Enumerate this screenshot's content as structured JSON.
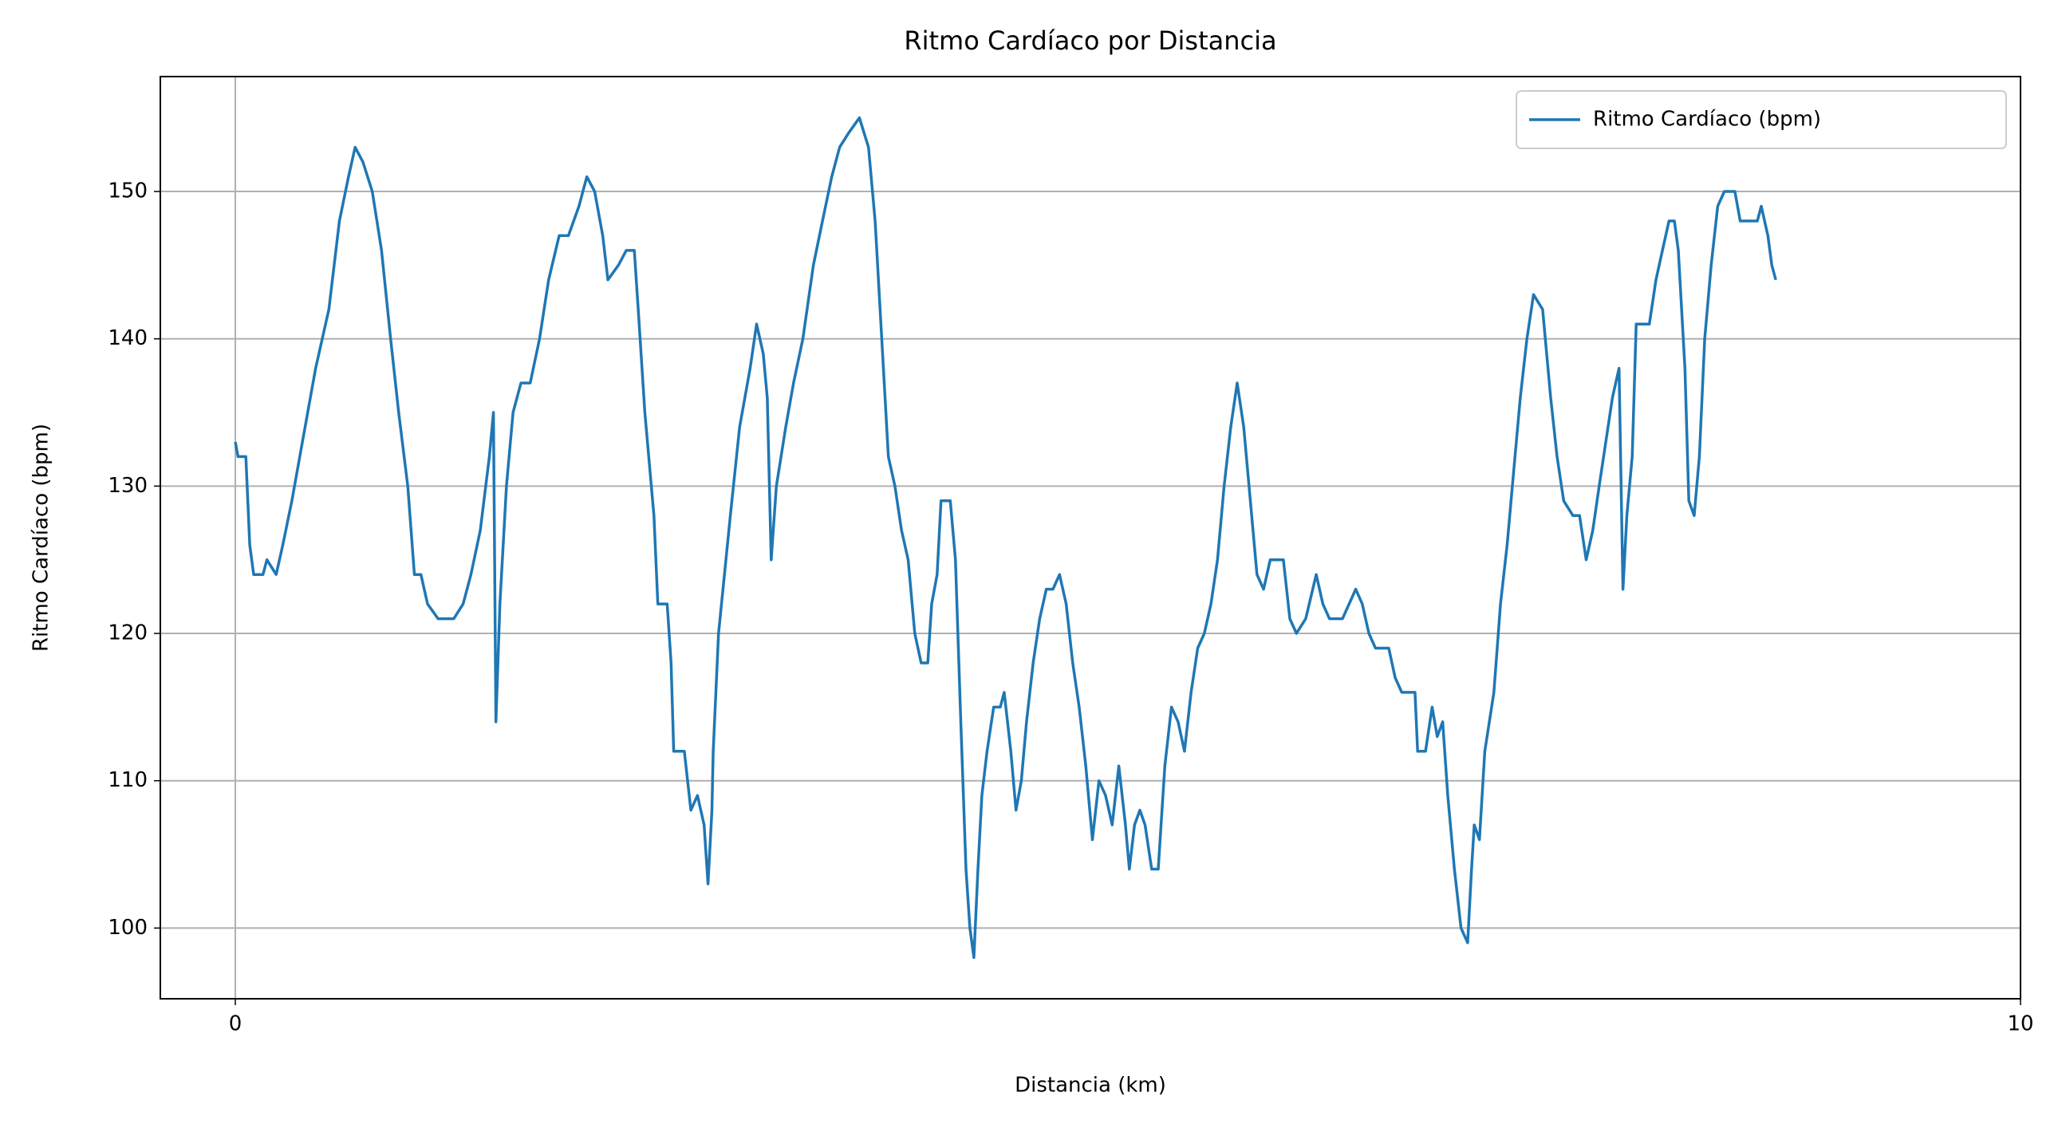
{
  "chart_data": {
    "type": "line",
    "title": "Ritmo Cardíaco por Distancia",
    "x_label": "Distancia (km)",
    "y_label": "Ritmo Cardíaco (bpm)",
    "xlim": [
      -0.42,
      10
    ],
    "xticks": [
      0,
      10
    ],
    "ylim": [
      95.2,
      157.8
    ],
    "yticks": [
      100,
      110,
      120,
      130,
      140,
      150
    ],
    "grid": true,
    "legend": "upper right",
    "x": [
      0,
      0.015,
      0.059,
      0.081,
      0.103,
      0.155,
      0.177,
      0.229,
      0.266,
      0.317,
      0.376,
      0.45,
      0.524,
      0.583,
      0.634,
      0.671,
      0.715,
      0.767,
      0.819,
      0.87,
      0.915,
      0.966,
      1.003,
      1.04,
      1.077,
      1.136,
      1.165,
      1.224,
      1.276,
      1.32,
      1.372,
      1.423,
      1.446,
      1.46,
      1.482,
      1.519,
      1.556,
      1.6,
      1.652,
      1.704,
      1.755,
      1.814,
      1.866,
      1.925,
      1.969,
      2.013,
      2.058,
      2.087,
      2.146,
      2.19,
      2.235,
      2.257,
      2.294,
      2.345,
      2.367,
      2.419,
      2.441,
      2.456,
      2.515,
      2.552,
      2.589,
      2.626,
      2.648,
      2.67,
      2.677,
      2.707,
      2.773,
      2.825,
      2.884,
      2.92,
      2.957,
      2.98,
      3.002,
      3.031,
      3.083,
      3.127,
      3.179,
      3.238,
      3.289,
      3.341,
      3.385,
      3.437,
      3.496,
      3.547,
      3.584,
      3.621,
      3.658,
      3.695,
      3.732,
      3.769,
      3.806,
      3.842,
      3.879,
      3.901,
      3.931,
      3.953,
      4.005,
      4.034,
      4.064,
      4.093,
      4.115,
      4.137,
      4.16,
      4.182,
      4.211,
      4.248,
      4.285,
      4.307,
      4.344,
      4.373,
      4.403,
      4.432,
      4.469,
      4.506,
      4.543,
      4.58,
      4.617,
      4.654,
      4.691,
      4.727,
      4.764,
      4.801,
      4.838,
      4.875,
      4.912,
      4.949,
      4.986,
      5.008,
      5.037,
      5.067,
      5.096,
      5.133,
      5.17,
      5.207,
      5.244,
      5.281,
      5.317,
      5.354,
      5.391,
      5.428,
      5.465,
      5.502,
      5.539,
      5.576,
      5.612,
      5.649,
      5.686,
      5.723,
      5.76,
      5.797,
      5.871,
      5.907,
      5.944,
      5.996,
      6.055,
      6.092,
      6.129,
      6.202,
      6.239,
      6.276,
      6.313,
      6.35,
      6.387,
      6.461,
      6.497,
      6.534,
      6.608,
      6.623,
      6.667,
      6.704,
      6.733,
      6.763,
      6.792,
      6.829,
      6.866,
      6.903,
      6.925,
      6.94,
      6.969,
      6.999,
      7.05,
      7.087,
      7.124,
      7.161,
      7.198,
      7.235,
      7.272,
      7.323,
      7.368,
      7.404,
      7.441,
      7.493,
      7.53,
      7.567,
      7.604,
      7.64,
      7.677,
      7.714,
      7.751,
      7.773,
      7.795,
      7.825,
      7.847,
      7.921,
      7.958,
      7.994,
      8.031,
      8.061,
      8.083,
      8.12,
      8.142,
      8.172,
      8.201,
      8.231,
      8.267,
      8.304,
      8.341,
      8.4,
      8.43,
      8.526,
      8.548,
      8.585,
      8.607,
      8.629
    ],
    "series": [
      {
        "name": "Ritmo Cardíaco (bpm)",
        "color": "#1f77b4",
        "values": [
          133,
          132,
          132,
          126,
          124,
          124,
          125,
          124,
          126,
          129,
          133,
          138,
          142,
          148,
          151,
          153,
          152,
          150,
          146,
          140,
          135,
          130,
          124,
          124,
          122,
          121,
          121,
          121,
          122,
          124,
          127,
          132,
          135,
          114,
          122,
          130,
          135,
          137,
          137,
          140,
          144,
          147,
          147,
          149,
          151,
          150,
          147,
          144,
          145,
          146,
          146,
          142,
          135,
          128,
          122,
          122,
          118,
          112,
          112,
          108,
          109,
          107,
          103,
          108,
          112,
          120,
          128,
          134,
          138,
          141,
          139,
          136,
          125,
          130,
          134,
          137,
          140,
          145,
          148,
          151,
          153,
          154,
          155,
          153,
          148,
          140,
          132,
          130,
          127,
          125,
          120,
          118,
          118,
          122,
          124,
          129,
          129,
          125,
          114,
          104,
          100,
          98,
          104,
          109,
          112,
          115,
          115,
          116,
          112,
          108,
          110,
          114,
          118,
          121,
          123,
          123,
          124,
          122,
          118,
          115,
          111,
          106,
          110,
          109,
          107,
          111,
          107,
          104,
          107,
          108,
          107,
          104,
          104,
          111,
          115,
          114,
          112,
          116,
          119,
          120,
          122,
          125,
          130,
          134,
          137,
          134,
          129,
          124,
          123,
          125,
          125,
          121,
          120,
          121,
          124,
          122,
          121,
          121,
          122,
          123,
          122,
          120,
          119,
          119,
          117,
          116,
          116,
          112,
          112,
          115,
          113,
          114,
          109,
          104,
          100,
          99,
          104,
          107,
          106,
          112,
          116,
          122,
          126,
          131,
          136,
          140,
          143,
          142,
          136,
          132,
          129,
          128,
          128,
          125,
          127,
          130,
          133,
          136,
          138,
          123,
          128,
          132,
          141,
          141,
          144,
          146,
          148,
          148,
          146,
          138,
          129,
          128,
          132,
          140,
          145,
          149,
          150,
          150,
          148,
          148,
          149,
          147,
          145,
          144
        ]
      }
    ]
  }
}
